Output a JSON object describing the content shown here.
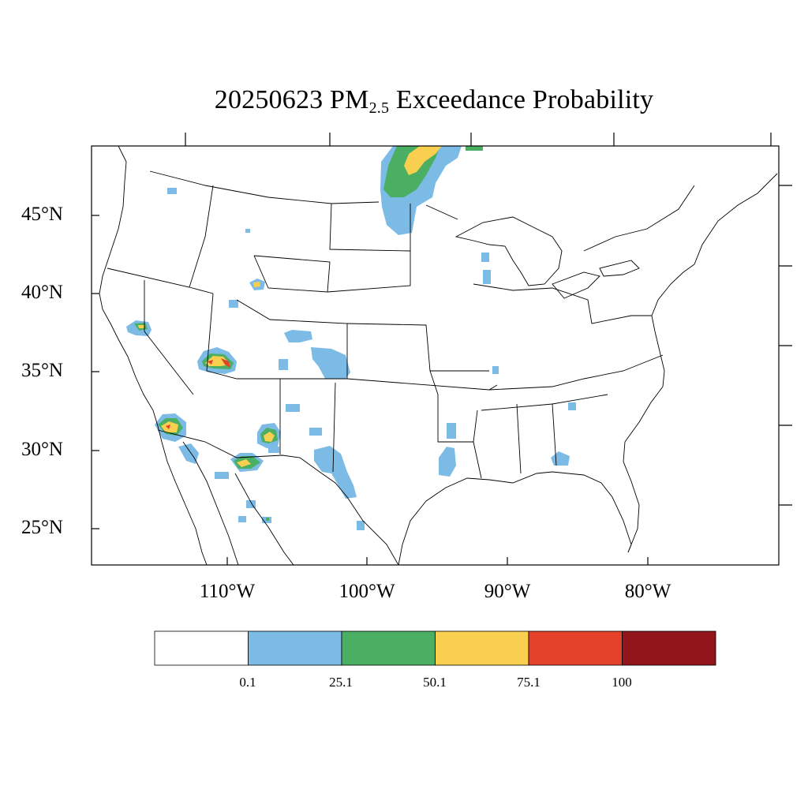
{
  "title": {
    "main": "20250623 PM",
    "sub": "2.5",
    "rest": " Exceedance Probability"
  },
  "lat_labels": [
    "45°N",
    "40°N",
    "35°N",
    "30°N",
    "25°N"
  ],
  "lon_labels": [
    "110°W",
    "100°W",
    "90°W",
    "80°W"
  ],
  "colorbar": {
    "colors": [
      "#ffffff",
      "#7cbbe6",
      "#4aaf62",
      "#f9cf4f",
      "#e3412a",
      "#92151c"
    ],
    "labels": [
      "0.1",
      "25.1",
      "50.1",
      "75.1",
      "100"
    ]
  }
}
